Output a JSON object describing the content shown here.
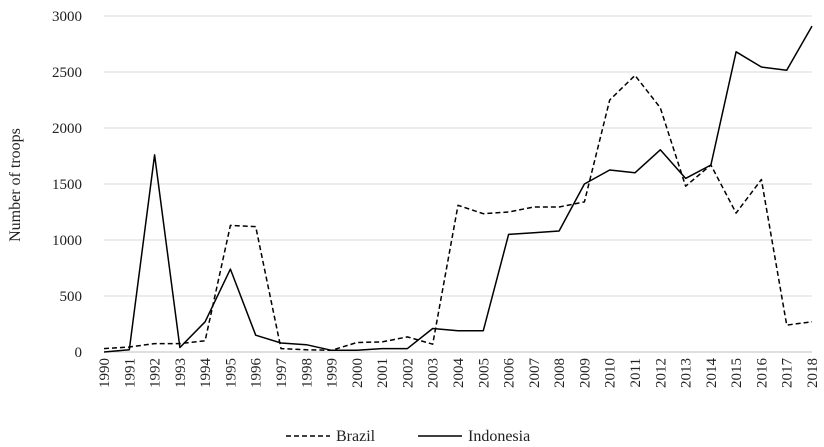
{
  "chart_data": {
    "type": "line",
    "title": "",
    "xlabel": "",
    "ylabel": "Number of troops",
    "ylim": [
      0,
      3000
    ],
    "y_ticks": [
      0,
      500,
      1000,
      1500,
      2000,
      2500,
      3000
    ],
    "grid": true,
    "legend_position": "bottom",
    "categories": [
      "1990",
      "1991",
      "1992",
      "1993",
      "1994",
      "1995",
      "1996",
      "1997",
      "1998",
      "1999",
      "2000",
      "2001",
      "2002",
      "2003",
      "2004",
      "2005",
      "2006",
      "2007",
      "2008",
      "2009",
      "2010",
      "2011",
      "2012",
      "2013",
      "2014",
      "2015",
      "2016",
      "2017",
      "2018"
    ],
    "series": [
      {
        "name": "Brazil",
        "dash": "dashed",
        "color": "#000000",
        "values": [
          30,
          45,
          75,
          75,
          100,
          1130,
          1120,
          30,
          20,
          15,
          85,
          90,
          135,
          70,
          1310,
          1235,
          1250,
          1295,
          1295,
          1340,
          2250,
          2470,
          2180,
          1480,
          1670,
          1240,
          1540,
          240,
          270
        ]
      },
      {
        "name": "Indonesia",
        "dash": "solid",
        "color": "#000000",
        "values": [
          0,
          20,
          1760,
          40,
          270,
          740,
          150,
          80,
          65,
          15,
          15,
          30,
          30,
          210,
          190,
          190,
          1050,
          1065,
          1080,
          1500,
          1625,
          1600,
          1805,
          1550,
          1670,
          2680,
          2545,
          2515,
          2910
        ]
      }
    ]
  }
}
